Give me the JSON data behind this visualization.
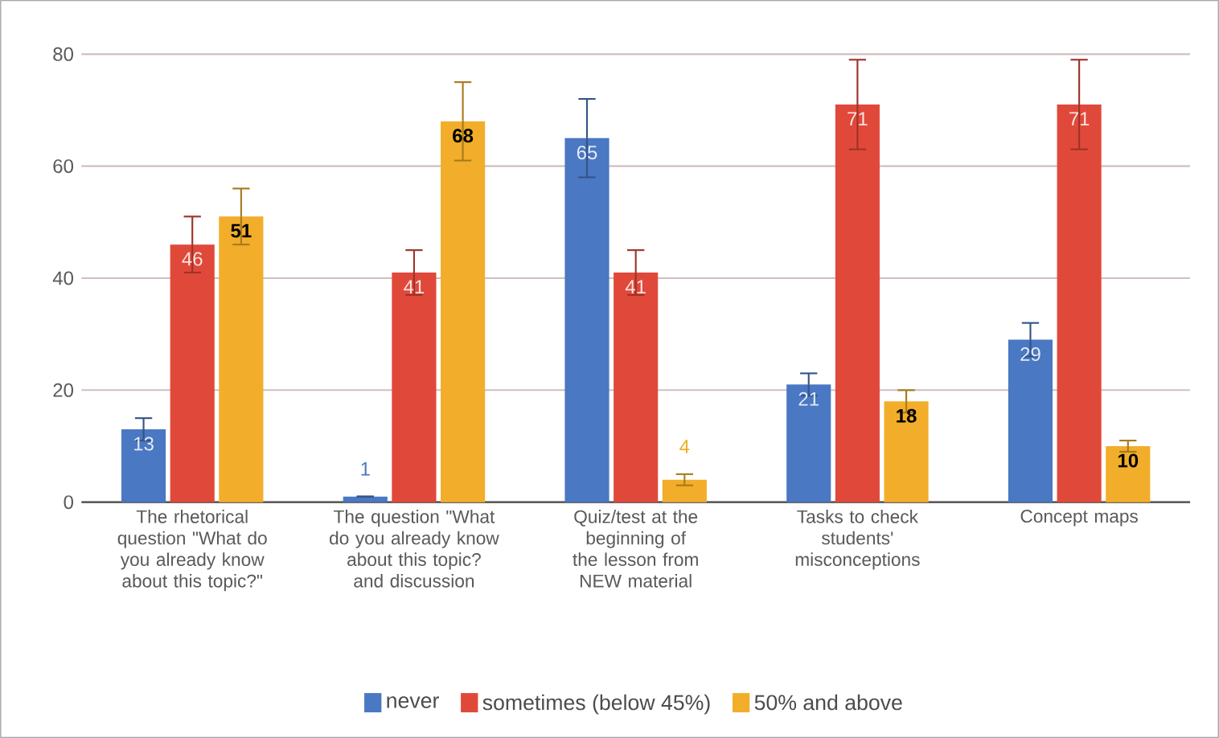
{
  "chart_data": {
    "type": "bar",
    "categories": [
      "The rhetorical question \"What do you already know about this topic?\"",
      "The question \"What do you already know about this topic? and discussion",
      "Quiz/test at the beginning of the lesson from NEW material",
      "Tasks to check students' misconceptions",
      "Concept maps"
    ],
    "series": [
      {
        "name": "never",
        "color": "#4a78c2",
        "values": [
          13,
          1,
          65,
          21,
          29
        ],
        "errors": [
          2,
          null,
          7,
          2,
          3
        ]
      },
      {
        "name": "sometimes (below 45%)",
        "color": "#e0493a",
        "values": [
          46,
          41,
          41,
          71,
          71
        ],
        "errors": [
          5,
          4,
          4,
          8,
          8
        ]
      },
      {
        "name": "50% and above",
        "color": "#f2ae2a",
        "values": [
          51,
          68,
          4,
          18,
          10
        ],
        "errors": [
          5,
          7,
          1,
          2,
          1
        ]
      }
    ],
    "ylim": [
      0,
      80
    ],
    "yticks": [
      0,
      20,
      40,
      60,
      80
    ],
    "grid": "y",
    "legend": "bottom",
    "data_labels": true
  }
}
